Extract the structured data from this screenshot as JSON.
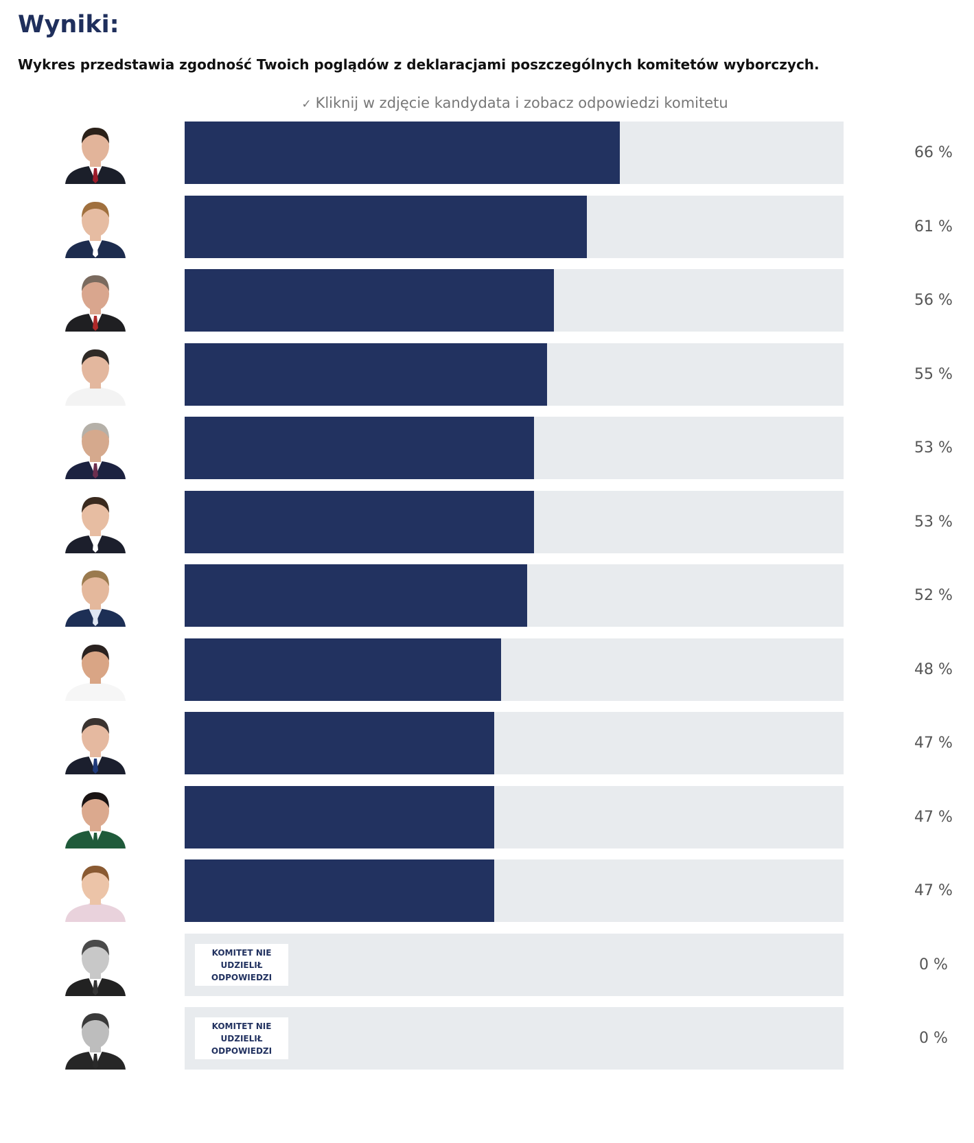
{
  "title": "Wyniki:",
  "subtitle": "Wykres przedstawia zgodność Twoich poglądów z deklaracjami poszczególnych komitetów wyborczych.",
  "hint": {
    "icon": "check-icon",
    "icon_glyph": "✓",
    "text": "Kliknij w zdjęcie kandydata i zobacz odpowiedzi komitetu"
  },
  "colors": {
    "bar_fill": "#223260",
    "bar_track": "#e8ebee",
    "title": "#1f2f5c",
    "percent_text": "#555555"
  },
  "chart_data": {
    "type": "bar",
    "orientation": "horizontal",
    "xlim": [
      0,
      100
    ],
    "unit": "%",
    "grid": false,
    "legend": "none",
    "no_answer_label": "KOMITET NIE UDZIELIŁ ODPOWIEDZI",
    "values": [
      66,
      61,
      56,
      55,
      53,
      53,
      52,
      48,
      47,
      47,
      47,
      0,
      0
    ],
    "value_labels": [
      "66 %",
      "61 %",
      "56 %",
      "55 %",
      "53 %",
      "53 %",
      "52 %",
      "48 %",
      "47 %",
      "47 %",
      "47 %",
      "0 %",
      "0 %"
    ],
    "answered": [
      true,
      true,
      true,
      true,
      true,
      true,
      true,
      true,
      true,
      true,
      true,
      false,
      false
    ]
  },
  "avatars": [
    {
      "icon": "candidate-photo-icon",
      "skin": "#e2b49a",
      "hair": "#2b2119",
      "jacket": "#1b1f2a",
      "shirt": "#ffffff",
      "tie": "#9c1c2a",
      "gray": false
    },
    {
      "icon": "candidate-photo-icon",
      "skin": "#e6bca2",
      "hair": "#a0703e",
      "jacket": "#1d2c4e",
      "shirt": "#ffffff",
      "tie": "#ffffff",
      "gray": false
    },
    {
      "icon": "candidate-photo-icon",
      "skin": "#d9a68e",
      "hair": "#7a6a5e",
      "jacket": "#1f1f22",
      "shirt": "#ffffff",
      "tie": "#b02a2a",
      "gray": false
    },
    {
      "icon": "candidate-photo-icon",
      "skin": "#e3b79e",
      "hair": "#2f2a26",
      "jacket": "#f3f3f3",
      "shirt": "#f3f3f3",
      "tie": "#f3f3f3",
      "gray": false
    },
    {
      "icon": "candidate-photo-icon",
      "skin": "#d5a98d",
      "hair": "#b5b0a8",
      "jacket": "#1c2240",
      "shirt": "#ffffff",
      "tie": "#6b2e4e",
      "gray": false
    },
    {
      "icon": "candidate-photo-icon",
      "skin": "#e7bda2",
      "hair": "#3a2a1e",
      "jacket": "#1c1f2c",
      "shirt": "#ffffff",
      "tie": "#ffffff",
      "gray": false
    },
    {
      "icon": "candidate-photo-icon",
      "skin": "#e4b89c",
      "hair": "#9a7a4e",
      "jacket": "#1d2f55",
      "shirt": "#dfe6f2",
      "tie": "#dfe6f2",
      "gray": false
    },
    {
      "icon": "candidate-photo-icon",
      "skin": "#d9a585",
      "hair": "#2a2220",
      "jacket": "#f6f6f6",
      "shirt": "#f6f6f6",
      "tie": "#f6f6f6",
      "gray": false
    },
    {
      "icon": "candidate-photo-icon",
      "skin": "#e5b9a0",
      "hair": "#3a3330",
      "jacket": "#1b1f2e",
      "shirt": "#ffffff",
      "tie": "#1f3a7a",
      "gray": false
    },
    {
      "icon": "candidate-photo-icon",
      "skin": "#dba98e",
      "hair": "#1a1414",
      "jacket": "#1f5a3a",
      "shirt": "#ffffff",
      "tie": "#1f5a3a",
      "gray": false
    },
    {
      "icon": "candidate-photo-icon",
      "skin": "#ecc4a8",
      "hair": "#8a5a32",
      "jacket": "#e9d2dc",
      "shirt": "#e9d2dc",
      "tie": "#e9d2dc",
      "gray": false
    },
    {
      "icon": "candidate-photo-icon",
      "skin": "#c8c8c8",
      "hair": "#4a4a4a",
      "jacket": "#222222",
      "shirt": "#ffffff",
      "tie": "#333333",
      "gray": true
    },
    {
      "icon": "candidate-photo-icon",
      "skin": "#bdbdbd",
      "hair": "#3a3a3a",
      "jacket": "#262626",
      "shirt": "#ffffff",
      "tie": "#2a2a2a",
      "gray": true
    }
  ]
}
